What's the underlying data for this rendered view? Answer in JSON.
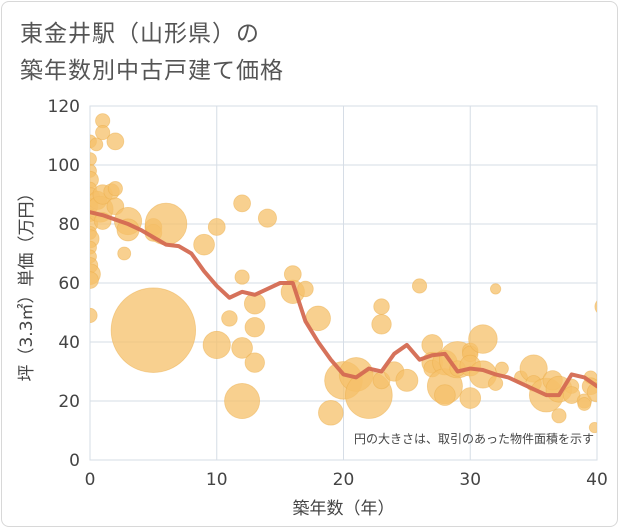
{
  "title_lines": [
    "東金井駅（山形県）の",
    "築年数別中古戸建て価格"
  ],
  "chart_data": {
    "type": "scatter",
    "title": "東金井駅（山形県）の築年数別中古戸建て価格",
    "xlabel": "築年数（年）",
    "ylabel": "坪（3.3㎡）単価（万円）",
    "xlim": [
      0,
      40
    ],
    "ylim": [
      0,
      120
    ],
    "xticks": [
      "0",
      "10",
      "20",
      "30",
      "40"
    ],
    "yticks": [
      "0",
      "20",
      "40",
      "60",
      "80",
      "100",
      "120"
    ],
    "grid": true,
    "note": "円の大きさは、取引のあった物件面積を示す",
    "colors": {
      "bubble_fill": "#f5c06a",
      "bubble_stroke": "#ebad4a",
      "line": "#d46a52",
      "grid": "#d6dde6",
      "plot_background": "#ffffff"
    },
    "series": [
      {
        "type": "bubble",
        "points": [
          [
            0,
            108,
            1
          ],
          [
            0,
            102,
            1
          ],
          [
            0,
            98,
            1
          ],
          [
            0,
            95,
            1.3
          ],
          [
            0,
            92,
            1
          ],
          [
            0,
            89,
            1.5
          ],
          [
            0,
            86,
            1.2
          ],
          [
            0,
            83,
            1
          ],
          [
            0,
            80,
            1.2
          ],
          [
            0,
            77,
            1
          ],
          [
            0,
            75,
            1.4
          ],
          [
            0,
            72,
            1
          ],
          [
            0,
            69,
            1
          ],
          [
            0,
            66,
            1.2
          ],
          [
            0,
            63,
            1.6
          ],
          [
            0,
            61,
            1.3
          ],
          [
            0,
            49,
            1.1
          ],
          [
            0.5,
            107,
            1
          ],
          [
            1,
            115,
            1.1
          ],
          [
            1,
            111,
            1.1
          ],
          [
            0.6,
            88,
            1.4
          ],
          [
            0.8,
            85,
            2
          ],
          [
            1,
            81,
            1.3
          ],
          [
            1,
            90,
            1.5
          ],
          [
            1.7,
            91,
            1.2
          ],
          [
            2,
            108,
            1.3
          ],
          [
            2,
            92,
            1.1
          ],
          [
            2,
            86,
            1.3
          ],
          [
            3,
            81,
            2.1
          ],
          [
            3,
            78,
            1.7
          ],
          [
            2.7,
            70,
            1
          ],
          [
            5,
            79,
            1.3
          ],
          [
            5,
            77,
            1.3
          ],
          [
            6,
            80,
            3.2
          ],
          [
            5,
            44,
            6.5
          ],
          [
            9,
            73,
            1.6
          ],
          [
            10,
            79,
            1.3
          ],
          [
            10,
            39,
            2.1
          ],
          [
            11,
            48,
            1.2
          ],
          [
            12,
            87,
            1.3
          ],
          [
            12,
            62,
            1.1
          ],
          [
            12,
            38,
            1.6
          ],
          [
            12,
            20,
            2.7
          ],
          [
            13,
            53,
            1.6
          ],
          [
            13,
            45,
            1.5
          ],
          [
            13,
            33,
            1.5
          ],
          [
            14,
            82,
            1.4
          ],
          [
            16,
            63,
            1.3
          ],
          [
            16,
            57,
            1.8
          ],
          [
            17,
            58,
            1.2
          ],
          [
            18,
            48,
            1.9
          ],
          [
            19,
            16,
            1.9
          ],
          [
            20,
            27,
            2.9
          ],
          [
            21,
            29,
            2.6
          ],
          [
            22,
            22,
            3.6
          ],
          [
            23,
            52,
            1.2
          ],
          [
            23,
            46,
            1.5
          ],
          [
            23,
            27,
            1.3
          ],
          [
            24,
            30,
            1.5
          ],
          [
            25,
            27,
            1.7
          ],
          [
            26,
            59,
            1.1
          ],
          [
            27,
            39,
            1.6
          ],
          [
            27,
            33,
            1.6
          ],
          [
            27,
            31,
            1.3
          ],
          [
            28,
            33,
            1.9
          ],
          [
            28,
            25,
            2.7
          ],
          [
            28,
            22,
            1.6
          ],
          [
            29,
            34,
            2.8
          ],
          [
            29,
            31,
            1.2
          ],
          [
            30,
            37,
            1.2
          ],
          [
            30,
            36,
            1.2
          ],
          [
            30,
            32,
            1.6
          ],
          [
            30,
            21,
            1.6
          ],
          [
            31,
            41,
            2.2
          ],
          [
            31,
            29,
            2.1
          ],
          [
            32,
            58,
            0.8
          ],
          [
            32,
            26,
            1.1
          ],
          [
            32.5,
            31,
            1
          ],
          [
            34,
            28,
            1
          ],
          [
            35,
            31,
            2.1
          ],
          [
            35,
            26,
            1.2
          ],
          [
            36,
            22,
            2.6
          ],
          [
            36.5,
            27,
            1.5
          ],
          [
            37,
            24,
            2
          ],
          [
            37,
            15,
            1.1
          ],
          [
            38,
            25,
            1.1
          ],
          [
            38,
            22,
            1.3
          ],
          [
            39,
            20,
            1.1
          ],
          [
            39,
            19,
            1
          ],
          [
            39.5,
            28,
            1
          ],
          [
            39.5,
            25,
            1.3
          ],
          [
            40,
            23,
            1.5
          ],
          [
            39.8,
            11,
            0.8
          ],
          [
            40.5,
            52,
            1.3
          ]
        ]
      },
      {
        "type": "line",
        "x": [
          0,
          1,
          2,
          3,
          4,
          5,
          6,
          7,
          8,
          9,
          10,
          11,
          12,
          13,
          14,
          15,
          16,
          17,
          18,
          19,
          20,
          21,
          22,
          23,
          24,
          25,
          26,
          27,
          28,
          29,
          30,
          31,
          32,
          33,
          34,
          35,
          36,
          37,
          38,
          39,
          40
        ],
        "y": [
          84,
          83,
          81.5,
          80,
          78,
          75.5,
          73,
          72.5,
          70,
          64,
          59,
          55,
          57,
          56,
          58,
          60,
          60,
          47,
          40,
          34,
          29,
          28,
          31,
          30,
          36,
          39,
          34,
          35.5,
          36,
          30,
          31,
          30.5,
          29,
          28,
          26,
          24,
          22,
          22,
          29,
          28,
          25
        ]
      }
    ]
  }
}
